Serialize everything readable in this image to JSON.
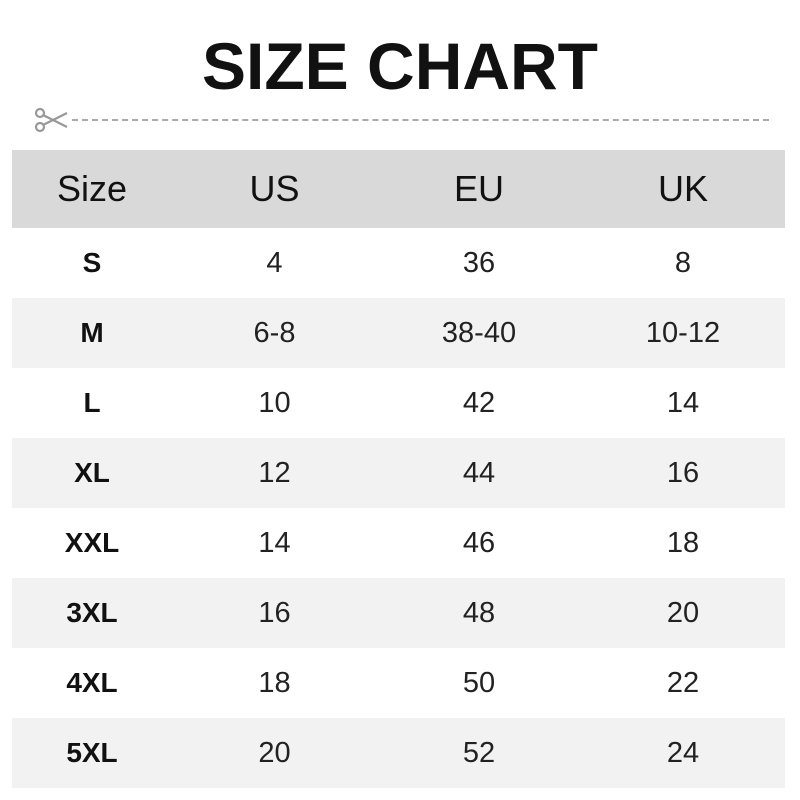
{
  "title": "SIZE CHART",
  "icons": {
    "cut_line": "scissors-icon"
  },
  "colors": {
    "header_bg": "#d9d9d9",
    "alt_row_bg": "#f2f2f2",
    "text": "#111111"
  },
  "table": {
    "headers": [
      "Size",
      "US",
      "EU",
      "UK"
    ],
    "rows": [
      [
        "S",
        "4",
        "36",
        "8"
      ],
      [
        "M",
        "6-8",
        "38-40",
        "10-12"
      ],
      [
        "L",
        "10",
        "42",
        "14"
      ],
      [
        "XL",
        "12",
        "44",
        "16"
      ],
      [
        "XXL",
        "14",
        "46",
        "18"
      ],
      [
        "3XL",
        "16",
        "48",
        "20"
      ],
      [
        "4XL",
        "18",
        "50",
        "22"
      ],
      [
        "5XL",
        "20",
        "52",
        "24"
      ]
    ]
  }
}
